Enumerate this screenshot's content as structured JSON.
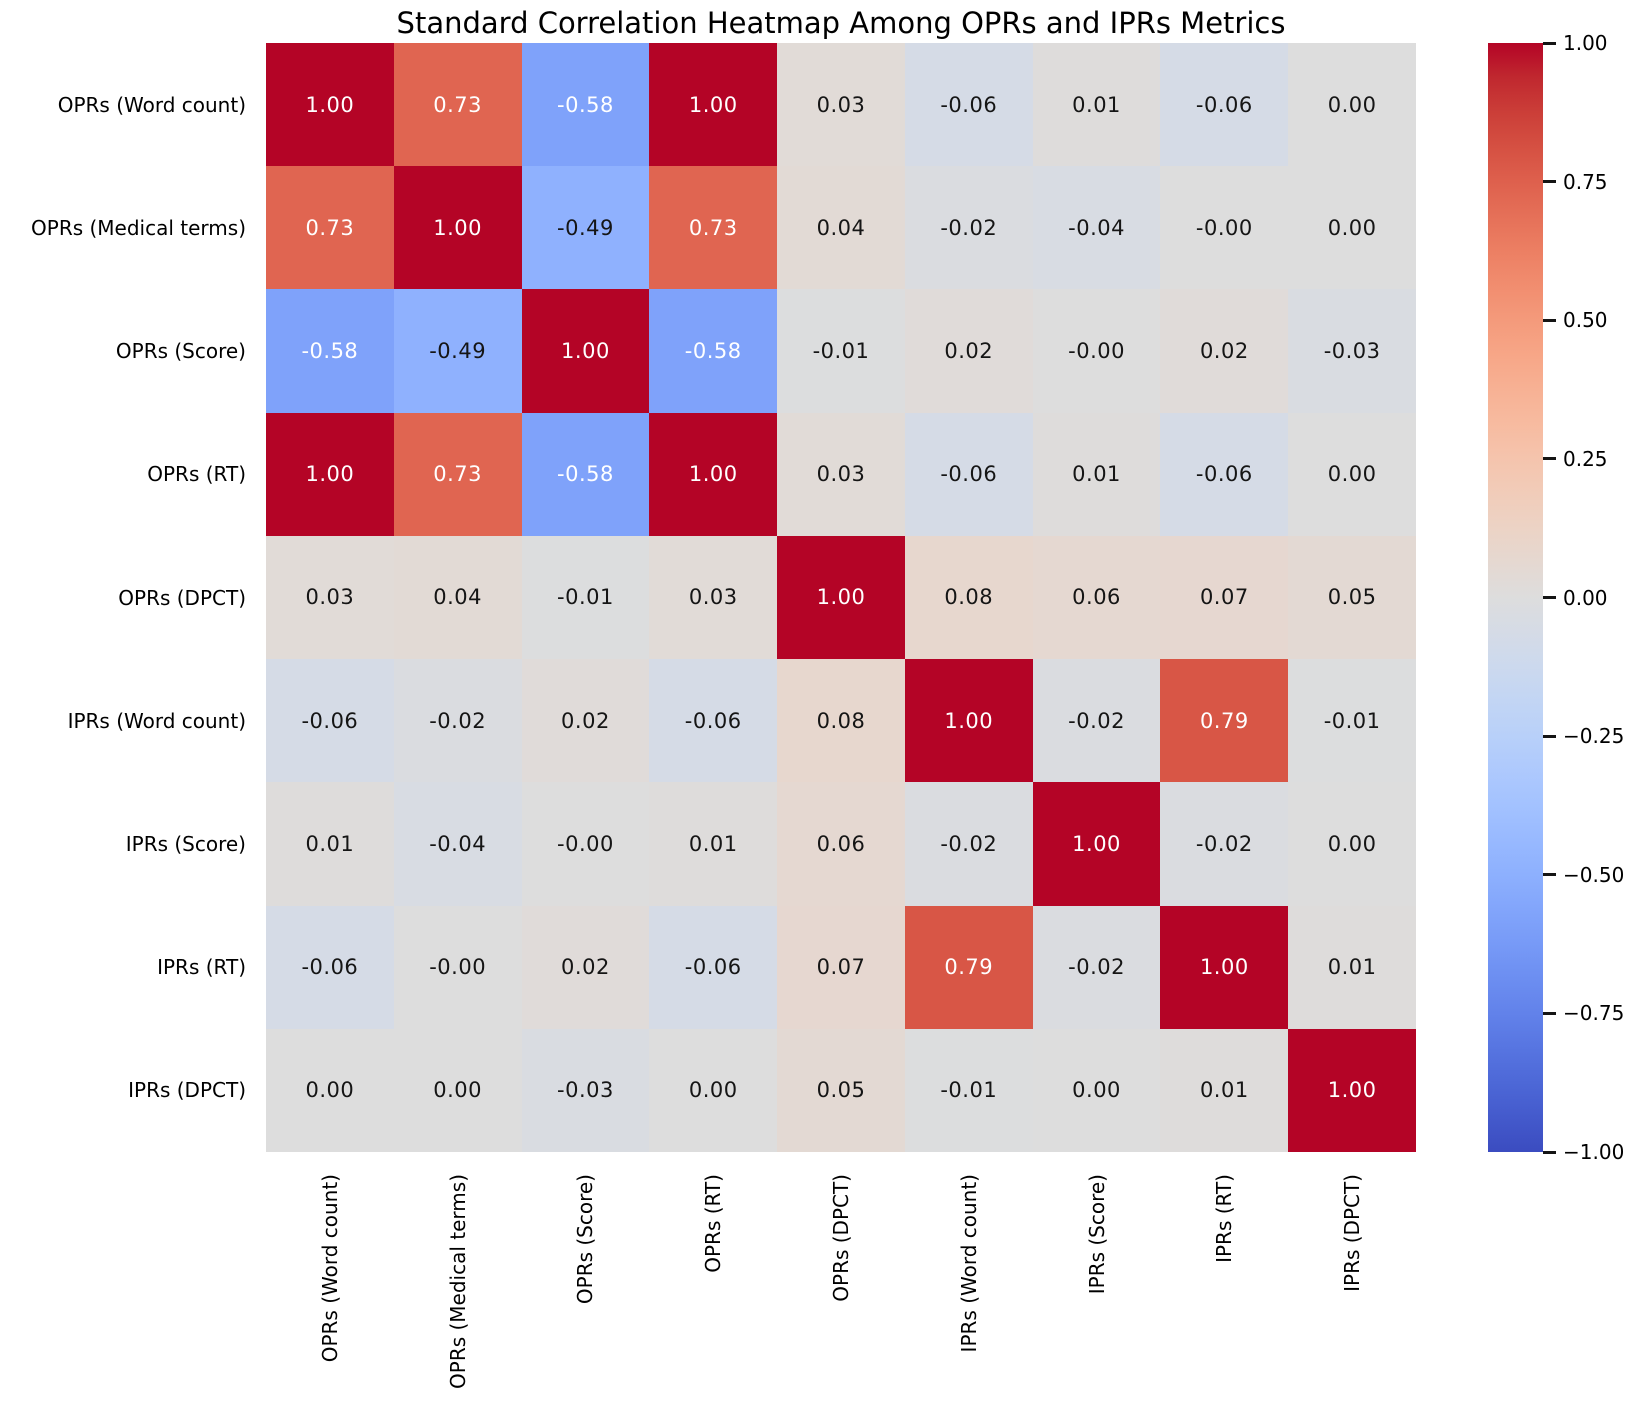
{
  "chart_data": {
    "type": "heatmap",
    "title": "Standard Correlation Heatmap Among OPRs and IPRs Metrics",
    "row_labels": [
      "OPRs (Word count)",
      "OPRs (Medical terms)",
      "OPRs (Score)",
      "OPRs (RT)",
      "OPRs (DPCT)",
      "IPRs (Word count)",
      "IPRs (Score)",
      "IPRs (RT)",
      "IPRs (DPCT)"
    ],
    "col_labels": [
      "OPRs (Word count)",
      "OPRs (Medical terms)",
      "OPRs (Score)",
      "OPRs (RT)",
      "OPRs (DPCT)",
      "IPRs (Word count)",
      "IPRs (Score)",
      "IPRs (RT)",
      "IPRs (DPCT)"
    ],
    "matrix": [
      [
        "1.00",
        "0.73",
        "-0.58",
        "1.00",
        "0.03",
        "-0.06",
        "0.01",
        "-0.06",
        "0.00"
      ],
      [
        "0.73",
        "1.00",
        "-0.49",
        "0.73",
        "0.04",
        "-0.02",
        "-0.04",
        "-0.00",
        "0.00"
      ],
      [
        "-0.58",
        "-0.49",
        "1.00",
        "-0.58",
        "-0.01",
        "0.02",
        "-0.00",
        "0.02",
        "-0.03"
      ],
      [
        "1.00",
        "0.73",
        "-0.58",
        "1.00",
        "0.03",
        "-0.06",
        "0.01",
        "-0.06",
        "0.00"
      ],
      [
        "0.03",
        "0.04",
        "-0.01",
        "0.03",
        "1.00",
        "0.08",
        "0.06",
        "0.07",
        "0.05"
      ],
      [
        "-0.06",
        "-0.02",
        "0.02",
        "-0.06",
        "0.08",
        "1.00",
        "-0.02",
        "0.79",
        "-0.01"
      ],
      [
        "0.01",
        "-0.04",
        "-0.00",
        "0.01",
        "0.06",
        "-0.02",
        "1.00",
        "-0.02",
        "0.00"
      ],
      [
        "-0.06",
        "-0.00",
        "0.02",
        "-0.06",
        "0.07",
        "0.79",
        "-0.02",
        "1.00",
        "0.01"
      ],
      [
        "0.00",
        "0.00",
        "-0.03",
        "0.00",
        "0.05",
        "-0.01",
        "0.00",
        "0.01",
        "1.00"
      ]
    ],
    "vmin": -1,
    "vmax": 1,
    "legend_position": "right-colorbar",
    "grid": false,
    "colormap": {
      "name": "coolwarm",
      "anchors": [
        "#3b4cc0",
        "#445acc",
        "#4d68d7",
        "#5775e1",
        "#6282ea",
        "#6c8ef1",
        "#779af7",
        "#82a5fb",
        "#8db0fe",
        "#98b9ff",
        "#a3c2ff",
        "#aec9fd",
        "#b8d0f9",
        "#c2d5f4",
        "#ccd9ee",
        "#d5dbe6",
        "#dddddd",
        "#e5d8d1",
        "#ecd3c5",
        "#f1ccb9",
        "#f5c4ad",
        "#f7bba0",
        "#f7b194",
        "#f7a687",
        "#f49a7b",
        "#f18d6f",
        "#ec7f63",
        "#e57058",
        "#de604d",
        "#d55042",
        "#cb3e38",
        "#c0282f",
        "#b40426"
      ]
    },
    "colorbar_ticks": [
      "1.00",
      "0.75",
      "0.50",
      "0.25",
      "0.00",
      "−0.25",
      "−0.50",
      "−0.75",
      "−1.00"
    ],
    "annotation_text_colors": {
      "dark": "#151515",
      "light": "#ffffff"
    }
  }
}
